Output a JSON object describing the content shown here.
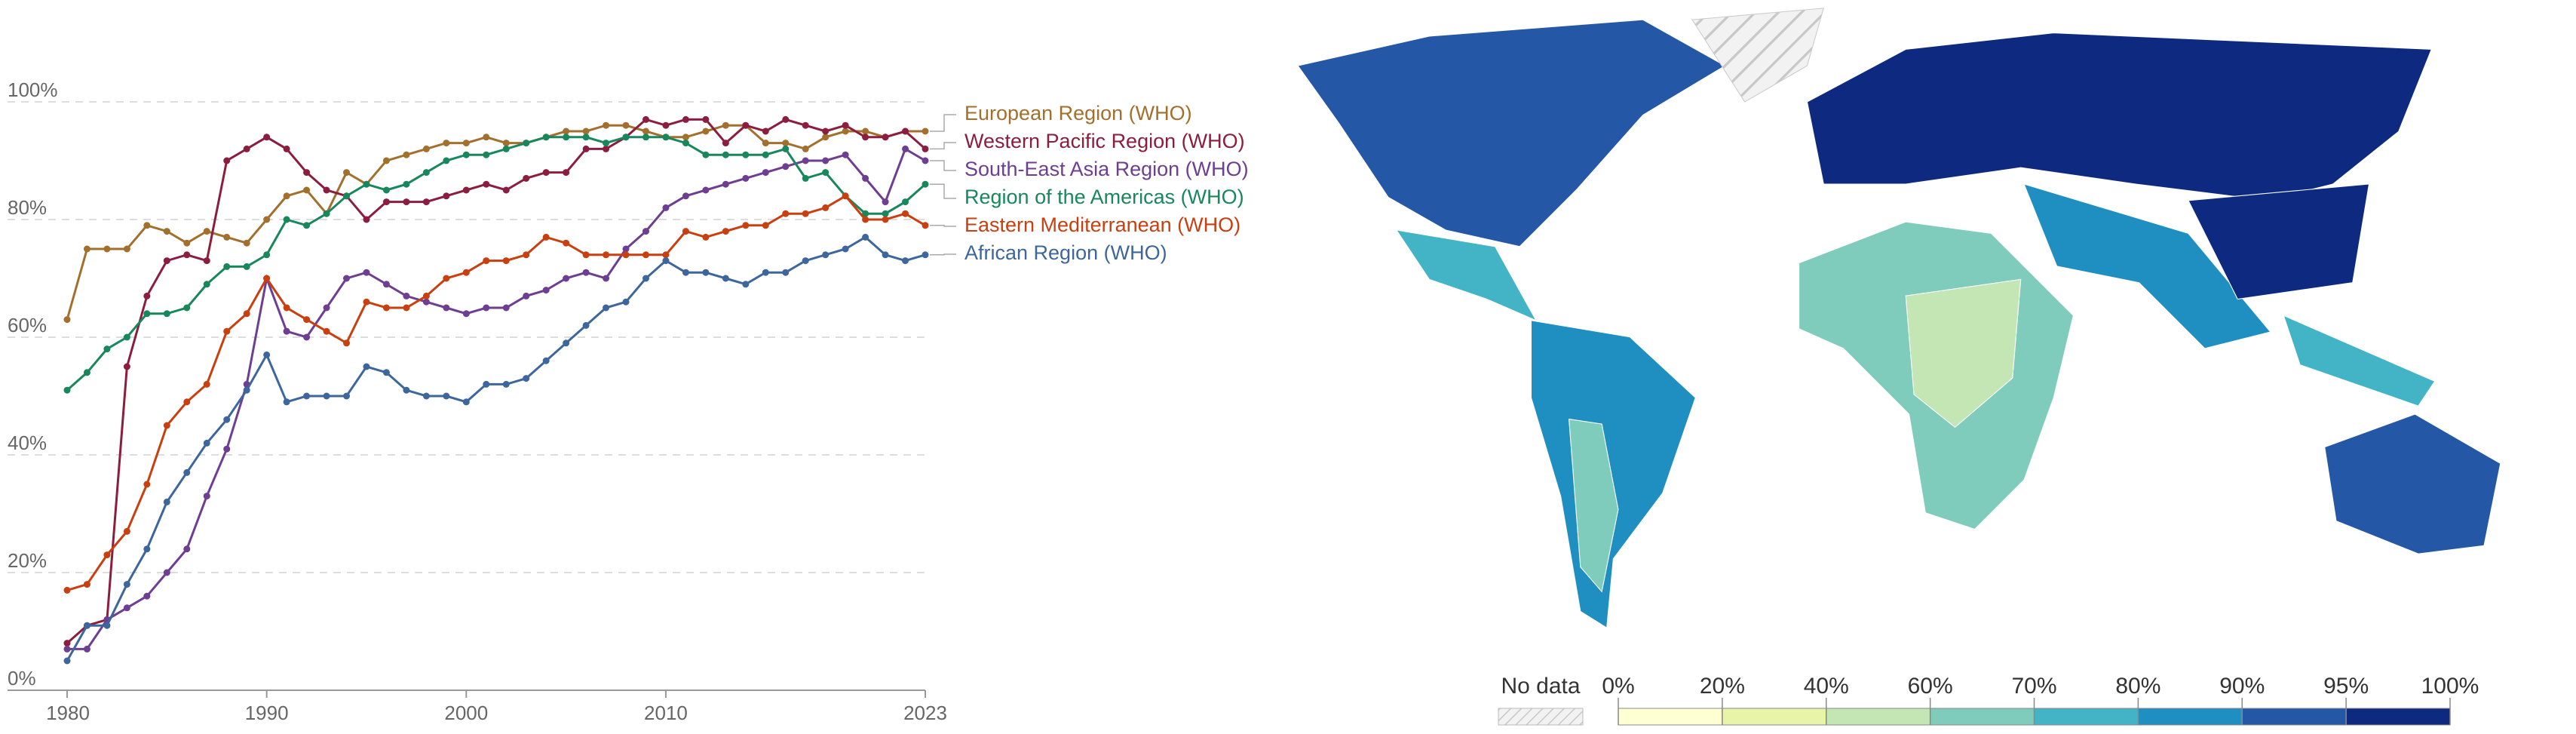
{
  "chart_data": {
    "type": "line",
    "x": [
      1980,
      1981,
      1982,
      1983,
      1984,
      1985,
      1986,
      1987,
      1988,
      1989,
      1990,
      1991,
      1992,
      1993,
      1994,
      1995,
      1996,
      1997,
      1998,
      1999,
      2000,
      2001,
      2002,
      2003,
      2004,
      2005,
      2006,
      2007,
      2008,
      2009,
      2010,
      2011,
      2012,
      2013,
      2014,
      2015,
      2016,
      2017,
      2018,
      2019,
      2020,
      2021,
      2022,
      2023
    ],
    "xlim": [
      1980,
      2023
    ],
    "xticks": [
      1980,
      1990,
      2000,
      2010,
      2023
    ],
    "ylim": [
      0,
      100
    ],
    "yticks": [
      {
        "value": 0,
        "label": "0%"
      },
      {
        "value": 20,
        "label": "20%"
      },
      {
        "value": 40,
        "label": "40%"
      },
      {
        "value": 60,
        "label": "60%"
      },
      {
        "value": 80,
        "label": "80%"
      },
      {
        "value": 100,
        "label": "100%"
      }
    ],
    "grid": true,
    "series": [
      {
        "name": "European Region (WHO)",
        "color": "#a2702c",
        "values": [
          63,
          75,
          75,
          75,
          79,
          78,
          76,
          78,
          77,
          76,
          80,
          84,
          85,
          81,
          88,
          86,
          90,
          91,
          92,
          93,
          93,
          94,
          93,
          93,
          94,
          95,
          95,
          96,
          96,
          95,
          94,
          94,
          95,
          96,
          96,
          93,
          93,
          92,
          94,
          95,
          95,
          94,
          95,
          95
        ]
      },
      {
        "name": "Western Pacific Region (WHO)",
        "color": "#8b1e3f",
        "values": [
          8,
          11,
          12,
          55,
          67,
          73,
          74,
          73,
          90,
          92,
          94,
          92,
          88,
          85,
          84,
          80,
          83,
          83,
          83,
          84,
          85,
          86,
          85,
          87,
          88,
          88,
          92,
          92,
          94,
          97,
          96,
          97,
          97,
          93,
          96,
          95,
          97,
          96,
          95,
          96,
          94,
          94,
          95,
          92
        ]
      },
      {
        "name": "South-East Asia Region (WHO)",
        "color": "#6d3e91",
        "values": [
          7,
          7,
          12,
          14,
          16,
          20,
          24,
          33,
          41,
          52,
          70,
          61,
          60,
          65,
          70,
          71,
          69,
          67,
          66,
          65,
          64,
          65,
          65,
          67,
          68,
          70,
          71,
          70,
          75,
          78,
          82,
          84,
          85,
          86,
          87,
          88,
          89,
          90,
          90,
          91,
          87,
          83,
          92,
          90
        ]
      },
      {
        "name": "Region of the Americas (WHO)",
        "color": "#18875c",
        "values": [
          51,
          54,
          58,
          60,
          64,
          64,
          65,
          69,
          72,
          72,
          74,
          80,
          79,
          81,
          84,
          86,
          85,
          86,
          88,
          90,
          91,
          91,
          92,
          93,
          94,
          94,
          94,
          93,
          94,
          94,
          94,
          93,
          91,
          91,
          91,
          91,
          92,
          87,
          88,
          84,
          81,
          81,
          83,
          86
        ]
      },
      {
        "name": "Eastern Mediterranean (WHO)",
        "color": "#c83f10",
        "values": [
          17,
          18,
          23,
          27,
          35,
          45,
          49,
          52,
          61,
          64,
          70,
          65,
          63,
          61,
          59,
          66,
          65,
          65,
          67,
          70,
          71,
          73,
          73,
          74,
          77,
          76,
          74,
          74,
          74,
          74,
          74,
          78,
          77,
          78,
          79,
          79,
          81,
          81,
          82,
          84,
          80,
          80,
          81,
          79
        ]
      },
      {
        "name": "African Region (WHO)",
        "color": "#3d679c",
        "values": [
          5,
          11,
          11,
          18,
          24,
          32,
          37,
          42,
          46,
          51,
          57,
          49,
          50,
          50,
          50,
          55,
          54,
          51,
          50,
          50,
          49,
          52,
          52,
          53,
          56,
          59,
          62,
          65,
          66,
          70,
          73,
          71,
          71,
          70,
          69,
          71,
          71,
          73,
          74,
          75,
          77,
          74,
          73,
          74
        ]
      }
    ]
  },
  "map_legend": {
    "no_data_label": "No data",
    "ticks": [
      "0%",
      "20%",
      "40%",
      "60%",
      "70%",
      "80%",
      "90%",
      "95%",
      "100%"
    ],
    "colors": [
      "#ffffd4",
      "#e8f4a8",
      "#c4e6b4",
      "#80ccbc",
      "#42b4c6",
      "#1e8fc0",
      "#2458a6",
      "#0d2a80"
    ]
  }
}
